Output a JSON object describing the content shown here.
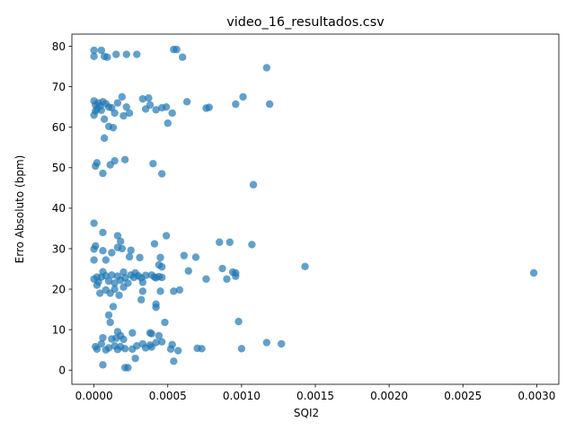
{
  "chart_data": {
    "type": "scatter",
    "title": "video_16_resultados.csv",
    "xlabel": "SQI2",
    "ylabel": "Erro Absoluto (bpm)",
    "xlim": [
      -0.00015,
      0.00315
    ],
    "ylim": [
      -3.5,
      83
    ],
    "xticks": [
      0.0,
      0.0005,
      0.001,
      0.0015,
      0.002,
      0.0025,
      0.003
    ],
    "xtick_labels": [
      "0.0000",
      "0.0005",
      "0.0010",
      "0.0015",
      "0.0020",
      "0.0025",
      "0.0030"
    ],
    "yticks": [
      0,
      10,
      20,
      30,
      40,
      50,
      60,
      70,
      80
    ],
    "ytick_labels": [
      "0",
      "10",
      "20",
      "30",
      "40",
      "50",
      "60",
      "70",
      "80"
    ],
    "grid": false,
    "marker_color": "#1f77b4",
    "marker_alpha": 0.7,
    "points": [
      [
        0.0,
        79.0
      ],
      [
        0.0,
        77.5
      ],
      [
        5e-05,
        79.0
      ],
      [
        7e-05,
        77.5
      ],
      [
        9e-05,
        77.3
      ],
      [
        0.00015,
        78.0
      ],
      [
        0.00022,
        78.0
      ],
      [
        0.00029,
        78.0
      ],
      [
        0.00054,
        79.2
      ],
      [
        0.00056,
        79.2
      ],
      [
        0.0006,
        77.3
      ],
      [
        0.00117,
        74.7
      ],
      [
        0.0,
        66.5
      ],
      [
        1e-05,
        65.5
      ],
      [
        2e-05,
        64.5
      ],
      [
        3e-05,
        66.0
      ],
      [
        4e-05,
        65.2
      ],
      [
        5e-05,
        64.2
      ],
      [
        6e-05,
        66.3
      ],
      [
        8e-05,
        65.8
      ],
      [
        0.0001,
        65.0
      ],
      [
        0.00012,
        64.8
      ],
      [
        0.00014,
        63.5
      ],
      [
        0.00016,
        66.0
      ],
      [
        0.00019,
        67.5
      ],
      [
        0.0002,
        62.8
      ],
      [
        0.00022,
        65.0
      ],
      [
        0.00024,
        63.5
      ],
      [
        0.00033,
        67.0
      ],
      [
        0.00035,
        64.5
      ],
      [
        0.00037,
        67.2
      ],
      [
        0.00038,
        65.5
      ],
      [
        0.00042,
        64.3
      ],
      [
        0.00046,
        64.8
      ],
      [
        0.00049,
        65.0
      ],
      [
        0.0005,
        61.0
      ],
      [
        0.00053,
        63.5
      ],
      [
        0.00063,
        66.3
      ],
      [
        0.00076,
        64.7
      ],
      [
        0.00078,
        64.9
      ],
      [
        0.00096,
        65.7
      ],
      [
        0.00101,
        67.5
      ],
      [
        0.00119,
        65.7
      ],
      [
        0.0,
        63.0
      ],
      [
        1e-05,
        64.0
      ],
      [
        7e-05,
        62.0
      ],
      [
        0.0001,
        60.2
      ],
      [
        0.00013,
        59.9
      ],
      [
        7e-05,
        57.3
      ],
      [
        2e-05,
        51.2
      ],
      [
        1e-05,
        50.4
      ],
      [
        0.00011,
        50.7
      ],
      [
        0.00014,
        51.7
      ],
      [
        0.00021,
        52.0
      ],
      [
        0.0004,
        51.0
      ],
      [
        0.00046,
        48.5
      ],
      [
        6e-05,
        48.6
      ],
      [
        0.00108,
        45.8
      ],
      [
        0.0,
        36.3
      ],
      [
        6e-05,
        34.0
      ],
      [
        0.00016,
        33.2
      ],
      [
        0.00049,
        33.2
      ],
      [
        0.00018,
        31.8
      ],
      [
        0.00041,
        31.2
      ],
      [
        0.00085,
        31.6
      ],
      [
        0.00092,
        31.6
      ],
      [
        0.00107,
        31.0
      ],
      [
        1e-05,
        30.7
      ],
      [
        0.0,
        29.9
      ],
      [
        6e-05,
        29.5
      ],
      [
        0.00012,
        29.0
      ],
      [
        0.00016,
        30.3
      ],
      [
        0.00019,
        30.0
      ],
      [
        0.00025,
        29.6
      ],
      [
        0.0,
        27.2
      ],
      [
        8e-05,
        27.2
      ],
      [
        0.00024,
        28.0
      ],
      [
        0.00031,
        27.8
      ],
      [
        0.00045,
        27.8
      ],
      [
        0.00061,
        28.3
      ],
      [
        0.00069,
        27.9
      ],
      [
        0.00044,
        26.0
      ],
      [
        0.00046,
        25.5
      ],
      [
        0.00087,
        25.1
      ],
      [
        0.00143,
        25.6
      ],
      [
        0.00298,
        24.0
      ],
      [
        0.00064,
        24.5
      ],
      [
        0.00094,
        24.2
      ],
      [
        0.00096,
        24.0
      ],
      [
        0.0,
        22.5
      ],
      [
        2e-05,
        23.0
      ],
      [
        3e-05,
        21.8
      ],
      [
        5e-05,
        23.0
      ],
      [
        6e-05,
        24.3
      ],
      [
        8e-05,
        23.3
      ],
      [
        0.0001,
        22.0
      ],
      [
        0.00012,
        23.5
      ],
      [
        0.00014,
        21.5
      ],
      [
        0.00016,
        23.2
      ],
      [
        0.00018,
        22.2
      ],
      [
        0.0002,
        24.2
      ],
      [
        0.00021,
        22.8
      ],
      [
        0.00023,
        21.5
      ],
      [
        0.00025,
        23.5
      ],
      [
        0.00027,
        22.9
      ],
      [
        0.00028,
        24.0
      ],
      [
        0.0003,
        23.3
      ],
      [
        0.00032,
        22.8
      ],
      [
        0.00035,
        23.4
      ],
      [
        0.00039,
        23.5
      ],
      [
        0.00041,
        23.0
      ],
      [
        0.00042,
        22.8
      ],
      [
        0.00044,
        23.1
      ],
      [
        0.00046,
        22.9
      ],
      [
        0.00033,
        21.7
      ],
      [
        0.00076,
        22.5
      ],
      [
        0.0009,
        22.5
      ],
      [
        0.00096,
        23.2
      ],
      [
        2e-05,
        21.0
      ],
      [
        4e-05,
        19.0
      ],
      [
        8e-05,
        19.8
      ],
      [
        0.00011,
        19.0
      ],
      [
        0.00014,
        20.0
      ],
      [
        0.00017,
        18.5
      ],
      [
        0.0002,
        20.5
      ],
      [
        0.00033,
        19.5
      ],
      [
        0.00032,
        17.4
      ],
      [
        0.00045,
        19.5
      ],
      [
        0.00054,
        19.5
      ],
      [
        0.00058,
        19.8
      ],
      [
        0.00013,
        15.7
      ],
      [
        0.00042,
        16.3
      ],
      [
        0.00042,
        15.5
      ],
      [
        0.0001,
        13.6
      ],
      [
        0.00011,
        11.8
      ],
      [
        0.00048,
        11.8
      ],
      [
        0.00098,
        12.0
      ],
      [
        0.00016,
        9.5
      ],
      [
        0.00018,
        8.5
      ],
      [
        0.00026,
        9.2
      ],
      [
        0.00038,
        9.2
      ],
      [
        0.00039,
        9.0
      ],
      [
        0.00044,
        8.5
      ],
      [
        6e-05,
        8.0
      ],
      [
        0.00012,
        7.7
      ],
      [
        0.00015,
        7.9
      ],
      [
        0.0002,
        7.6
      ],
      [
        1e-05,
        5.8
      ],
      [
        2e-05,
        5.2
      ],
      [
        5e-05,
        6.5
      ],
      [
        8e-05,
        5.0
      ],
      [
        0.0001,
        5.5
      ],
      [
        0.00014,
        6.0
      ],
      [
        0.00016,
        5.1
      ],
      [
        0.00018,
        5.8
      ],
      [
        0.00021,
        5.3
      ],
      [
        0.00026,
        5.2
      ],
      [
        0.00029,
        6.0
      ],
      [
        0.00033,
        6.5
      ],
      [
        0.00035,
        5.5
      ],
      [
        0.00038,
        6.2
      ],
      [
        0.00039,
        5.7
      ],
      [
        0.00042,
        6.8
      ],
      [
        0.00046,
        7.0
      ],
      [
        0.00052,
        5.2
      ],
      [
        0.00053,
        6.3
      ],
      [
        0.00057,
        4.8
      ],
      [
        0.0007,
        5.4
      ],
      [
        0.00073,
        5.3
      ],
      [
        0.001,
        5.3
      ],
      [
        0.00117,
        6.8
      ],
      [
        0.00127,
        6.5
      ],
      [
        0.00028,
        2.9
      ],
      [
        0.00054,
        2.2
      ],
      [
        6e-05,
        1.3
      ],
      [
        0.00021,
        0.6
      ],
      [
        0.00023,
        0.6
      ]
    ]
  }
}
